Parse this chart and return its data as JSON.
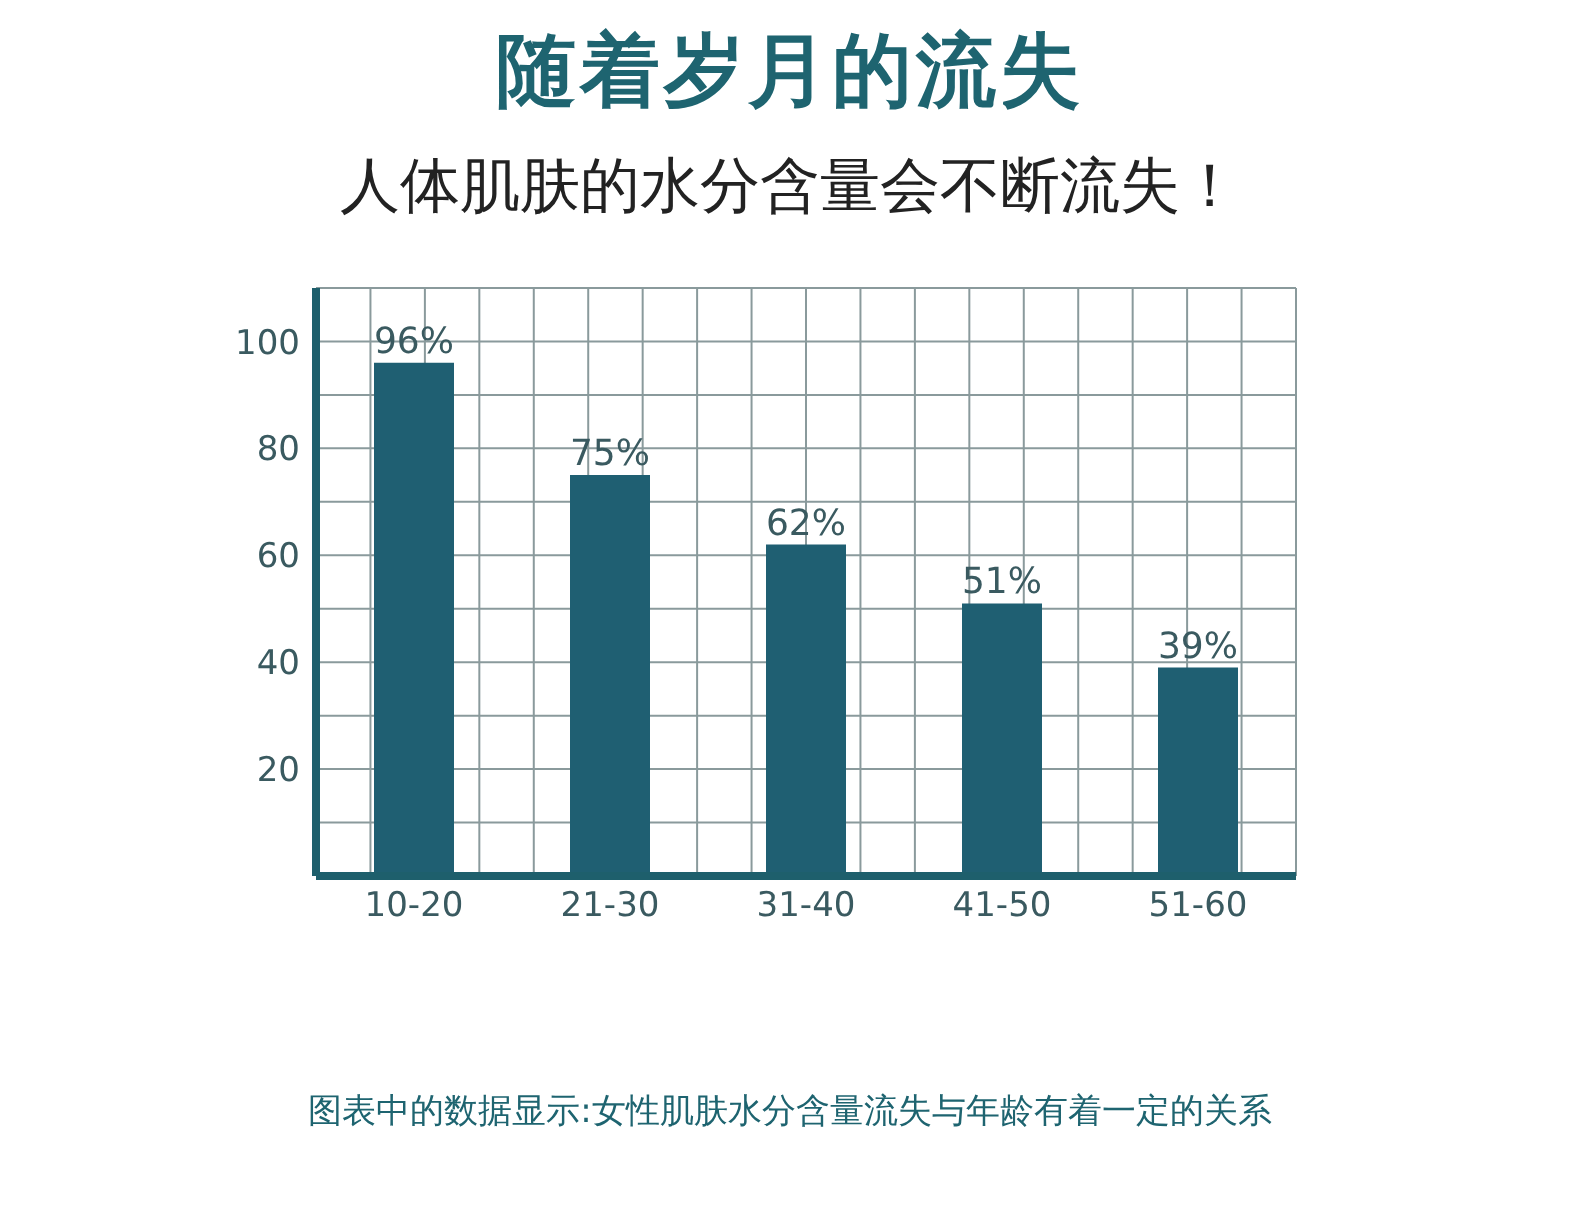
{
  "chart_data": {
    "type": "bar",
    "title": "随着岁月的流失",
    "subtitle": "人体肌肤的水分含量会不断流失！",
    "categories": [
      "10-20",
      "21-30",
      "31-40",
      "41-50",
      "51-60"
    ],
    "values": [
      96,
      75,
      62,
      51,
      39
    ],
    "value_labels": [
      "96%",
      "75%",
      "62%",
      "51%",
      "39%"
    ],
    "color": "#1f5f72",
    "ylim": [
      0,
      110
    ],
    "yticks": [
      {
        "value": 10,
        "label": null
      },
      20,
      {
        "value": 30,
        "label": null
      },
      40,
      {
        "value": 50,
        "label": null
      },
      60,
      {
        "value": 70,
        "label": null
      },
      80,
      {
        "value": 90,
        "label": null
      },
      100
    ],
    "grid": true,
    "annotations": [
      "图表中的数据显示:女性肌肤水分含量流失与年龄有着一定的关系"
    ]
  }
}
